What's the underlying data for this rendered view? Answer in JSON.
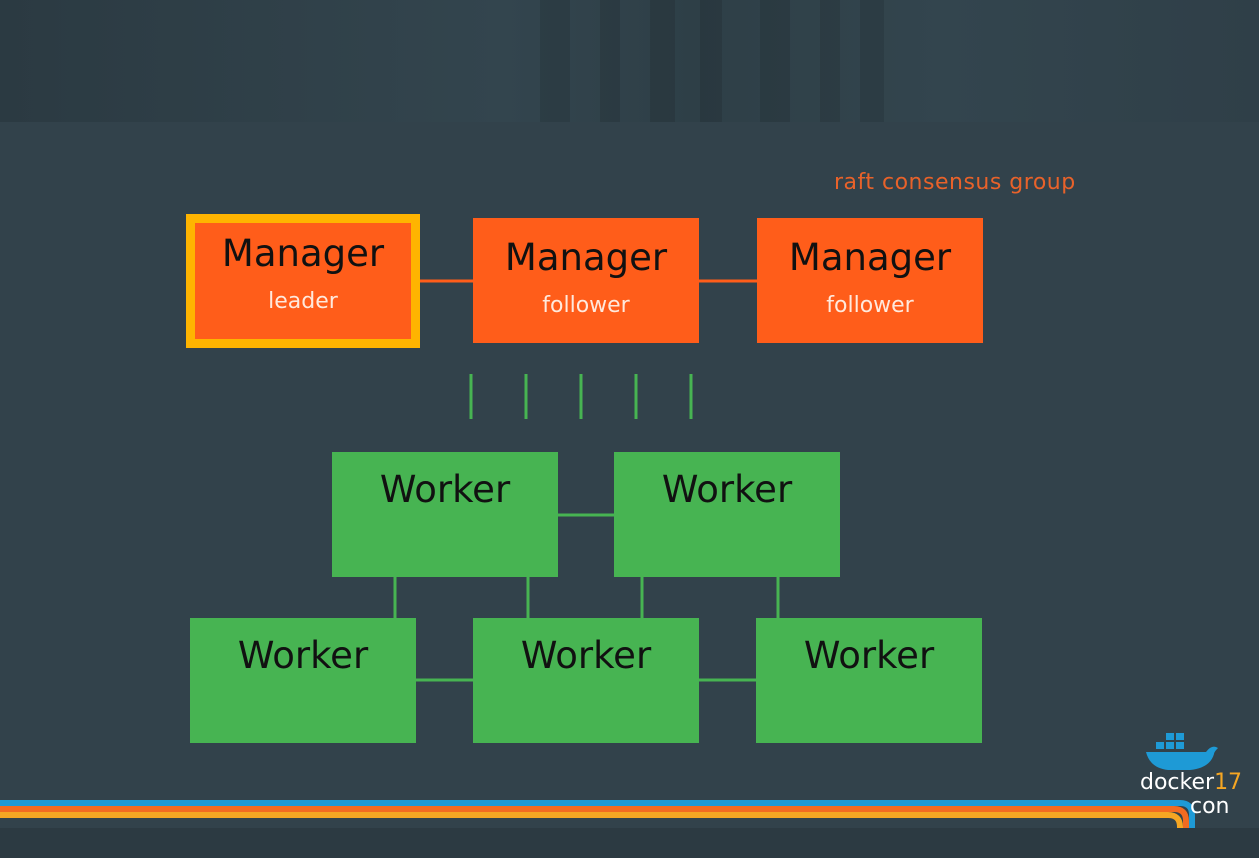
{
  "caption": "raft consensus group",
  "managers": [
    {
      "title": "Manager",
      "role": "leader"
    },
    {
      "title": "Manager",
      "role": "follower"
    },
    {
      "title": "Manager",
      "role": "follower"
    }
  ],
  "workers": [
    {
      "title": "Worker"
    },
    {
      "title": "Worker"
    },
    {
      "title": "Worker"
    },
    {
      "title": "Worker"
    },
    {
      "title": "Worker"
    }
  ],
  "logo": {
    "name": "docker",
    "number": "17",
    "suffix": "con"
  },
  "colors": {
    "background": "#32424b",
    "manager": "#ff5d1a",
    "leader_border": "#ffb400",
    "worker": "#47b452",
    "caption": "#e8622a",
    "link_manager": "#ff5d1a",
    "link_worker": "#47b452"
  }
}
